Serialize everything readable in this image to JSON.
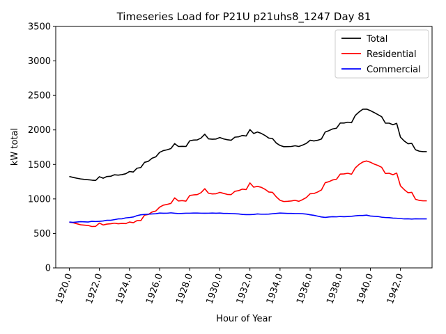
{
  "chart_data": {
    "type": "line",
    "title": "Timeseries Load for P21U p21uhs8_1247  Day 81",
    "xlabel": "Hour of Year",
    "ylabel": "kW total",
    "xlim": [
      1919.1,
      1944.1
    ],
    "ylim": [
      0,
      3500
    ],
    "x_ticks": [
      "1920.0",
      "1922.0",
      "1924.0",
      "1926.0",
      "1928.0",
      "1930.0",
      "1932.0",
      "1934.0",
      "1936.0",
      "1938.0",
      "1940.0",
      "1942.0"
    ],
    "y_ticks": [
      "0",
      "500",
      "1000",
      "1500",
      "2000",
      "2500",
      "3000",
      "3500"
    ],
    "x": [
      1920.0,
      1920.25,
      1920.5,
      1920.75,
      1921.0,
      1921.25,
      1921.5,
      1921.75,
      1922.0,
      1922.25,
      1922.5,
      1922.75,
      1923.0,
      1923.25,
      1923.5,
      1923.75,
      1924.0,
      1924.25,
      1924.5,
      1924.75,
      1925.0,
      1925.25,
      1925.5,
      1925.75,
      1926.0,
      1926.25,
      1926.5,
      1926.75,
      1927.0,
      1927.25,
      1927.5,
      1927.75,
      1928.0,
      1928.25,
      1928.5,
      1928.75,
      1929.0,
      1929.25,
      1929.5,
      1929.75,
      1930.0,
      1930.25,
      1930.5,
      1930.75,
      1931.0,
      1931.25,
      1931.5,
      1931.75,
      1932.0,
      1932.25,
      1932.5,
      1932.75,
      1933.0,
      1933.25,
      1933.5,
      1933.75,
      1934.0,
      1934.25,
      1934.5,
      1934.75,
      1935.0,
      1935.25,
      1935.5,
      1935.75,
      1936.0,
      1936.25,
      1936.5,
      1936.75,
      1937.0,
      1937.25,
      1937.5,
      1937.75,
      1938.0,
      1938.25,
      1938.5,
      1938.75,
      1939.0,
      1939.25,
      1939.5,
      1939.75,
      1940.0,
      1940.25,
      1940.5,
      1940.75,
      1941.0,
      1941.25,
      1941.5,
      1941.75,
      1942.0,
      1942.25,
      1942.5,
      1942.75,
      1943.0,
      1943.25,
      1943.5,
      1943.75
    ],
    "series": [
      {
        "name": "Total",
        "color": "#000000",
        "values": [
          1325,
          1312,
          1300,
          1290,
          1283,
          1278,
          1272,
          1268,
          1322,
          1300,
          1325,
          1328,
          1350,
          1345,
          1352,
          1365,
          1397,
          1390,
          1445,
          1455,
          1530,
          1545,
          1590,
          1610,
          1675,
          1700,
          1712,
          1730,
          1802,
          1760,
          1762,
          1760,
          1842,
          1853,
          1855,
          1882,
          1938,
          1870,
          1865,
          1868,
          1890,
          1870,
          1858,
          1850,
          1895,
          1900,
          1920,
          1912,
          2005,
          1948,
          1970,
          1950,
          1920,
          1882,
          1875,
          1810,
          1775,
          1757,
          1758,
          1760,
          1770,
          1760,
          1780,
          1805,
          1850,
          1840,
          1850,
          1868,
          1970,
          1990,
          2015,
          2025,
          2100,
          2100,
          2112,
          2105,
          2210,
          2260,
          2300,
          2302,
          2280,
          2252,
          2222,
          2192,
          2098,
          2098,
          2075,
          2095,
          1895,
          1840,
          1800,
          1805,
          1712,
          1692,
          1685,
          1685
        ]
      },
      {
        "name": "Residential",
        "color": "#ff0000",
        "values": [
          662,
          655,
          640,
          625,
          620,
          615,
          600,
          602,
          650,
          622,
          635,
          640,
          648,
          640,
          645,
          642,
          665,
          655,
          685,
          685,
          765,
          775,
          810,
          825,
          880,
          910,
          920,
          935,
          1015,
          970,
          975,
          968,
          1050,
          1058,
          1062,
          1090,
          1148,
          1082,
          1072,
          1075,
          1095,
          1080,
          1065,
          1062,
          1110,
          1120,
          1142,
          1135,
          1232,
          1170,
          1182,
          1168,
          1140,
          1100,
          1095,
          1030,
          980,
          962,
          965,
          970,
          980,
          965,
          990,
          1020,
          1075,
          1078,
          1100,
          1130,
          1235,
          1250,
          1275,
          1285,
          1360,
          1362,
          1372,
          1358,
          1450,
          1500,
          1535,
          1550,
          1532,
          1505,
          1485,
          1458,
          1368,
          1372,
          1350,
          1375,
          1190,
          1135,
          1090,
          1095,
          995,
          978,
          972,
          972
        ]
      },
      {
        "name": "Commercial",
        "color": "#0000ff",
        "values": [
          665,
          660,
          665,
          670,
          668,
          665,
          675,
          672,
          675,
          680,
          690,
          690,
          700,
          710,
          712,
          725,
          730,
          738,
          758,
          770,
          775,
          778,
          782,
          785,
          795,
          792,
          793,
          798,
          792,
          788,
          790,
          793,
          793,
          795,
          795,
          793,
          792,
          793,
          795,
          792,
          795,
          790,
          790,
          788,
          785,
          782,
          775,
          772,
          772,
          775,
          782,
          778,
          778,
          780,
          785,
          790,
          795,
          792,
          790,
          790,
          788,
          788,
          785,
          780,
          770,
          762,
          750,
          738,
          732,
          738,
          742,
          740,
          745,
          742,
          745,
          748,
          755,
          760,
          760,
          765,
          752,
          748,
          745,
          735,
          730,
          728,
          722,
          720,
          715,
          710,
          712,
          708,
          712,
          710,
          710,
          710
        ]
      }
    ],
    "legend": {
      "position": "top-right",
      "entries": [
        "Total",
        "Residential",
        "Commercial"
      ]
    }
  }
}
